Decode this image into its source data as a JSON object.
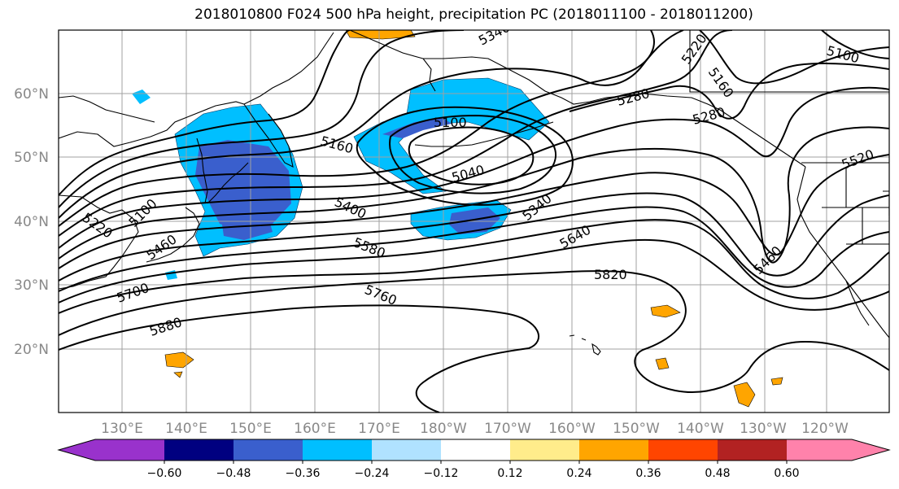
{
  "title": "2018010800 F024 500 hPa height, precipitation PC (2018011100 - 2018011200)",
  "map": {
    "lon_labels": [
      "130°E",
      "140°E",
      "150°E",
      "160°E",
      "170°E",
      "180°W",
      "170°W",
      "160°W",
      "150°W",
      "140°W",
      "130°W",
      "120°W"
    ],
    "lat_labels": [
      "60°N",
      "50°N",
      "40°N",
      "30°N",
      "20°N"
    ],
    "height_contour_labels": [
      "5340",
      "5220",
      "5160",
      "5100",
      "5280",
      "5100",
      "5040",
      "5160",
      "5280",
      "5520",
      "5100",
      "5220",
      "5400",
      "5460",
      "5340",
      "5640",
      "5580",
      "5460",
      "5700",
      "5820",
      "5760",
      "5880"
    ],
    "colors": {
      "land_outline": "#000000",
      "grid": "#a0a0a0",
      "contour": "#000000",
      "neg_light": "#00bfff",
      "neg_mid": "#3a5fcd",
      "pos_light": "#ffa500"
    }
  },
  "colorbar": {
    "tick_labels": [
      "−0.60",
      "−0.48",
      "−0.36",
      "−0.24",
      "−0.12",
      "0.12",
      "0.24",
      "0.36",
      "0.48",
      "0.60"
    ],
    "colors": [
      "#9932cc",
      "#000080",
      "#3a5fcd",
      "#00bfff",
      "#b0e2ff",
      "#ffffff",
      "#ffec8b",
      "#ffa500",
      "#ff4500",
      "#b22222",
      "#ff82ab"
    ]
  }
}
